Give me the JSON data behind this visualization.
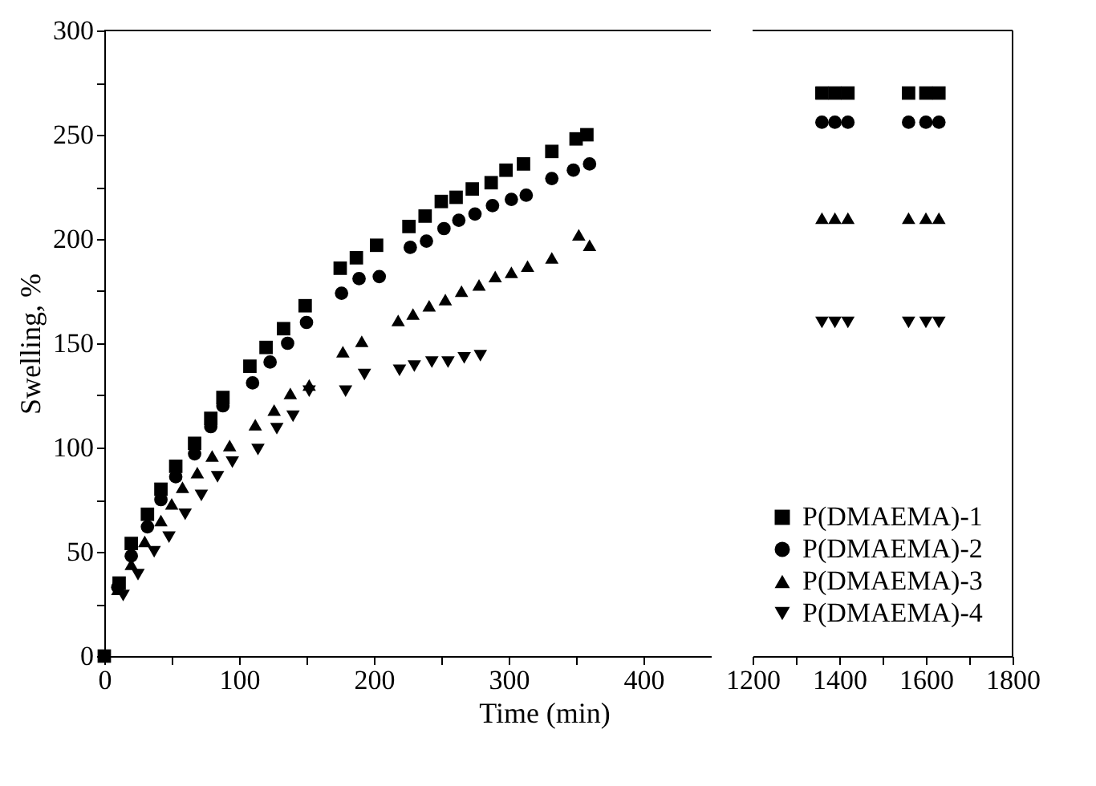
{
  "chart_data": [
    {
      "type": "scatter",
      "xlabel": "Time (min)",
      "ylabel": "Swelling, %",
      "xlim": [
        0,
        450
      ],
      "xticks": [
        0,
        {
          "value": 50,
          "label": null
        },
        100,
        {
          "value": 150,
          "label": null
        },
        200,
        {
          "value": 250,
          "label": null
        },
        300,
        {
          "value": 350,
          "label": null
        },
        400
      ],
      "ylim": [
        0,
        300
      ],
      "yticks": [
        0,
        {
          "value": 25,
          "label": null
        },
        50,
        {
          "value": 75,
          "label": null
        },
        100,
        {
          "value": 125,
          "label": null
        },
        150,
        {
          "value": 175,
          "label": null
        },
        200,
        {
          "value": 225,
          "label": null
        },
        250,
        {
          "value": 275,
          "label": null
        },
        300
      ],
      "tick_labels": "xy",
      "legend": false,
      "series": [
        {
          "color": "#000000",
          "marker": "square",
          "x": [
            0,
            11,
            20,
            32,
            42,
            53,
            67,
            79,
            88,
            108,
            120,
            133,
            149,
            175,
            187,
            202,
            226,
            238,
            250,
            261,
            273,
            287,
            298,
            311,
            332,
            350,
            358
          ],
          "values": [
            0,
            35,
            54,
            68,
            80,
            91,
            102,
            114,
            124,
            139,
            148,
            157,
            168,
            186,
            191,
            197,
            206,
            211,
            218,
            220,
            224,
            227,
            233,
            236,
            242,
            248,
            250
          ]
        },
        {
          "color": "#000000",
          "marker": "circle",
          "x": [
            10,
            20,
            32,
            42,
            53,
            67,
            79,
            88,
            110,
            123,
            136,
            150,
            176,
            189,
            204,
            227,
            239,
            252,
            263,
            275,
            288,
            302,
            313,
            332,
            348,
            360
          ],
          "values": [
            33,
            48,
            62,
            75,
            86,
            97,
            110,
            120,
            131,
            141,
            150,
            160,
            174,
            181,
            182,
            196,
            199,
            205,
            209,
            212,
            216,
            219,
            221,
            229,
            233,
            236
          ]
        },
        {
          "color": "#000000",
          "marker": "triangle",
          "x": [
            10,
            20,
            30,
            42,
            50,
            58,
            69,
            80,
            93,
            112,
            126,
            138,
            152,
            177,
            191,
            218,
            229,
            241,
            253,
            265,
            278,
            290,
            302,
            314,
            332,
            352,
            360
          ],
          "values": [
            32,
            44,
            55,
            65,
            73,
            81,
            88,
            96,
            101,
            111,
            118,
            126,
            130,
            146,
            151,
            161,
            164,
            168,
            171,
            175,
            178,
            182,
            184,
            187,
            191,
            202,
            197
          ]
        },
        {
          "color": "#000000",
          "marker": "triangle-down",
          "x": [
            14,
            25,
            37,
            48,
            60,
            72,
            84,
            95,
            114,
            128,
            140,
            152,
            179,
            193,
            219,
            230,
            243,
            255,
            267,
            279
          ],
          "values": [
            29,
            39,
            50,
            57,
            68,
            77,
            86,
            93,
            99,
            109,
            115,
            127,
            127,
            135,
            137,
            139,
            141,
            141,
            143,
            144
          ]
        }
      ]
    },
    {
      "type": "scatter",
      "xlim": [
        1200,
        1800
      ],
      "xticks": [
        1200,
        {
          "value": 1300,
          "label": null
        },
        1400,
        {
          "value": 1500,
          "label": null
        },
        1600,
        {
          "value": 1700,
          "label": null
        },
        1800
      ],
      "ylim": [
        0,
        300
      ],
      "tick_labels": "x",
      "legend": "bottom right",
      "series": [
        {
          "name": "P(DMAEMA)-1",
          "color": "#000000",
          "marker": "square",
          "x": [
            1360,
            1390,
            1420,
            1560,
            1600,
            1630
          ],
          "values": [
            270,
            270,
            270,
            270,
            270,
            270
          ]
        },
        {
          "name": "P(DMAEMA)-2",
          "color": "#000000",
          "marker": "circle",
          "x": [
            1360,
            1390,
            1420,
            1560,
            1600,
            1630
          ],
          "values": [
            256,
            256,
            256,
            256,
            256,
            256
          ]
        },
        {
          "name": "P(DMAEMA)-3",
          "color": "#000000",
          "marker": "triangle",
          "x": [
            1360,
            1390,
            1420,
            1560,
            1600,
            1630
          ],
          "values": [
            210,
            210,
            210,
            210,
            210,
            210
          ]
        },
        {
          "name": "P(DMAEMA)-4",
          "color": "#000000",
          "marker": "triangle-down",
          "x": [
            1360,
            1390,
            1420,
            1560,
            1600,
            1630
          ],
          "values": [
            160,
            160,
            160,
            160,
            160,
            160
          ]
        }
      ]
    }
  ]
}
